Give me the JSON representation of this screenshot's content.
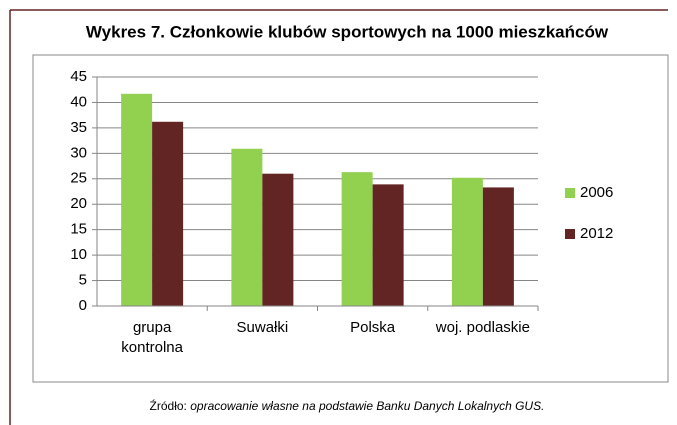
{
  "chart_data": {
    "type": "bar",
    "title": "Wykres 7. Członkowie klubów sportowych na 1000 mieszkańców",
    "categories": [
      "grupa\nkontrolna",
      "Suwałki",
      "Polska",
      "woj. podlaskie"
    ],
    "series": [
      {
        "name": "2006",
        "color": "#92d050",
        "values": [
          41.7,
          30.9,
          26.3,
          25.2
        ]
      },
      {
        "name": "2012",
        "color": "#632523",
        "values": [
          36.2,
          26.0,
          23.9,
          23.3
        ]
      }
    ],
    "ylim": [
      0,
      45
    ],
    "yticks": [
      0,
      5,
      10,
      15,
      20,
      25,
      30,
      35,
      40,
      45
    ],
    "grid": true,
    "legend": "right",
    "source_label": "Źródło:",
    "source_text": "opracowanie własne na podstawie Banku Danych Lokalnych GUS."
  }
}
